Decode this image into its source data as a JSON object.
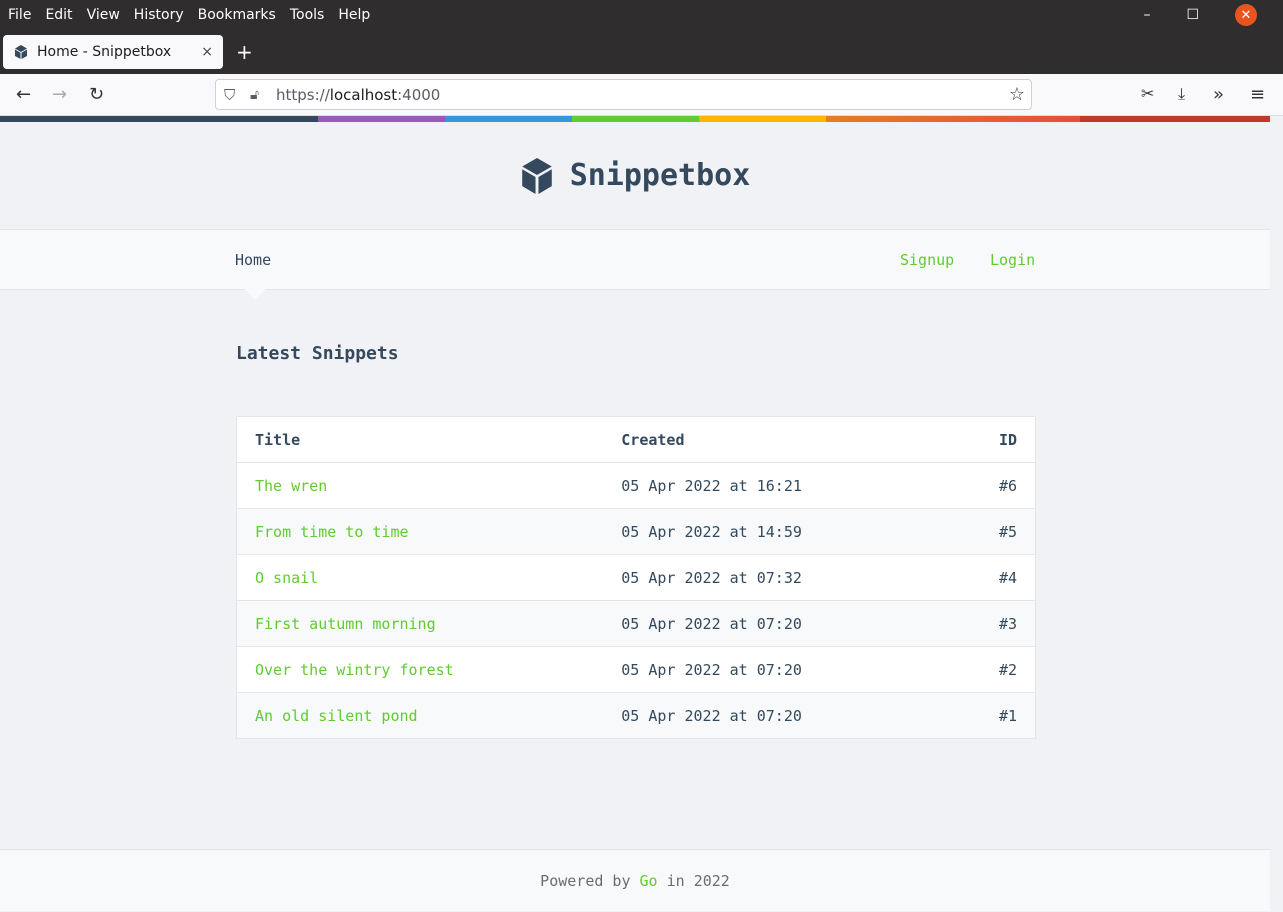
{
  "browser": {
    "menu": [
      "File",
      "Edit",
      "View",
      "History",
      "Bookmarks",
      "Tools",
      "Help"
    ],
    "tab_title": "Home - Snippetbox",
    "new_tab": "+",
    "close_tab": "×",
    "url_scheme": "https://",
    "url_host": "localhost",
    "url_port": ":4000",
    "colors": [
      "#34495e",
      "#9b59b6",
      "#3498db",
      "#62cb31",
      "#ffb606",
      "#e67e22",
      "#c0392b"
    ]
  },
  "site": {
    "title": "Snippetbox",
    "nav": {
      "home": "Home",
      "signup": "Signup",
      "login": "Login"
    },
    "heading": "Latest Snippets",
    "table": {
      "headers": [
        "Title",
        "Created",
        "ID"
      ],
      "rows": [
        {
          "title": "The wren",
          "created": "05 Apr 2022 at 16:21",
          "id": "#6"
        },
        {
          "title": "From time to time",
          "created": "05 Apr 2022 at 14:59",
          "id": "#5"
        },
        {
          "title": "O snail",
          "created": "05 Apr 2022 at 07:32",
          "id": "#4"
        },
        {
          "title": "First autumn morning",
          "created": "05 Apr 2022 at 07:20",
          "id": "#3"
        },
        {
          "title": "Over the wintry forest",
          "created": "05 Apr 2022 at 07:20",
          "id": "#2"
        },
        {
          "title": "An old silent pond",
          "created": "05 Apr 2022 at 07:20",
          "id": "#1"
        }
      ]
    },
    "footer": {
      "prefix": "Powered by",
      "link": "Go",
      "suffix": "in 2022"
    },
    "accent": "#62cb31"
  }
}
